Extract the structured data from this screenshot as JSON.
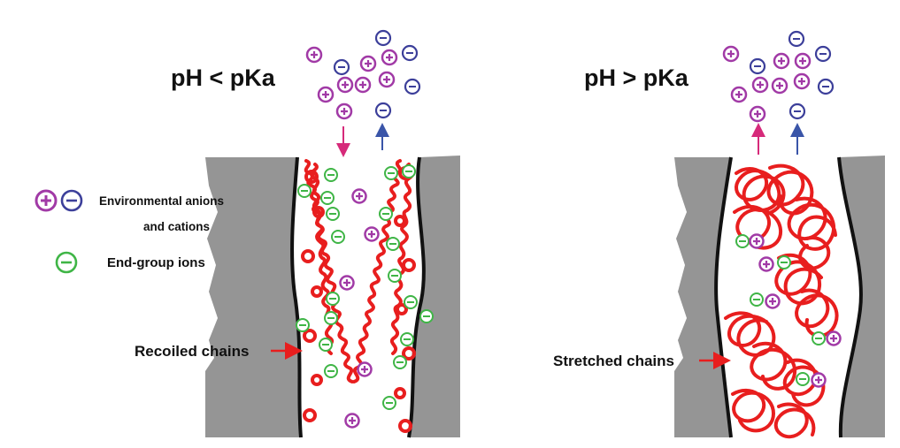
{
  "panels": {
    "left": {
      "title": "pH < pKa",
      "chain_label": "Recoiled chains"
    },
    "right": {
      "title": "pH > pKa",
      "chain_label": "Stretched chains"
    }
  },
  "legend": {
    "env_line1": "Environmental anions",
    "env_line2": "and cations",
    "end_group": "End-group ions"
  },
  "colors": {
    "cation": "#a13aa6",
    "anion": "#3c3f9a",
    "end_group": "#3fb546",
    "chain": "#e81e1e",
    "wall": "#959595",
    "arrow_in": "#d62a7a",
    "arrow_out": "#3a55a8"
  },
  "icons": {
    "cation": "plus-circle-icon",
    "anion": "minus-circle-icon",
    "end_group": "minus-circle-icon"
  }
}
